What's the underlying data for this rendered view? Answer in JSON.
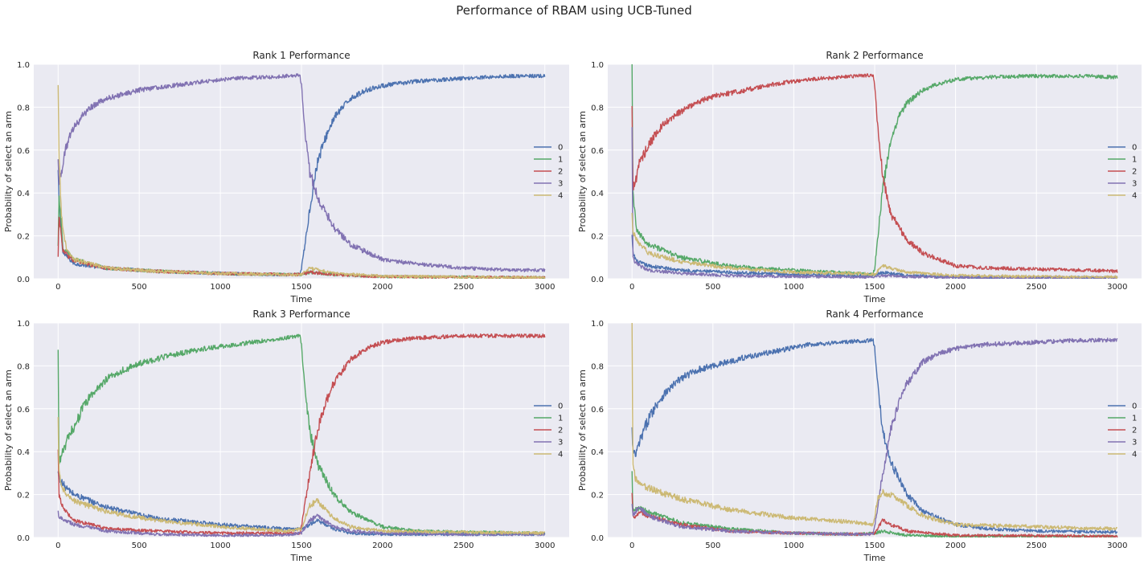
{
  "figure_title": "Performance of RBAM using UCB-Tuned",
  "colors": {
    "background": "#ffffff",
    "axes_face": "#eaeaf2",
    "grid": "#ffffff",
    "series": [
      "#4c72b0",
      "#55a868",
      "#c44e52",
      "#8172b2",
      "#ccb974"
    ]
  },
  "chart_data": [
    {
      "type": "line",
      "title": "Rank 1 Performance",
      "xlabel": "Time",
      "ylabel": "Probability of select an arm",
      "xlim": [
        -150,
        3150
      ],
      "ylim": [
        0,
        1.0
      ],
      "xticks": [
        0,
        500,
        1000,
        1500,
        2000,
        2500,
        3000
      ],
      "yticks": [
        0.0,
        0.2,
        0.4,
        0.6,
        0.8,
        1.0
      ],
      "legend": [
        "0",
        "1",
        "2",
        "3",
        "4"
      ],
      "legend_position": "center-right",
      "series": [
        {
          "name": "0",
          "x": [
            0,
            5,
            30,
            100,
            300,
            600,
            1000,
            1400,
            1490,
            1500,
            1520,
            1550,
            1600,
            1650,
            1700,
            1800,
            1900,
            2000,
            2200,
            2500,
            2800,
            3000
          ],
          "y": [
            0.5,
            0.35,
            0.12,
            0.07,
            0.05,
            0.035,
            0.025,
            0.018,
            0.02,
            0.05,
            0.15,
            0.32,
            0.55,
            0.66,
            0.75,
            0.84,
            0.88,
            0.9,
            0.92,
            0.935,
            0.945,
            0.945
          ]
        },
        {
          "name": "1",
          "x": [
            0,
            5,
            30,
            100,
            300,
            600,
            1000,
            1400,
            1500,
            1550,
            1700,
            2000,
            2500,
            3000
          ],
          "y": [
            0.15,
            0.4,
            0.14,
            0.09,
            0.05,
            0.035,
            0.025,
            0.02,
            0.02,
            0.03,
            0.02,
            0.01,
            0.008,
            0.005
          ]
        },
        {
          "name": "2",
          "x": [
            0,
            5,
            30,
            100,
            300,
            600,
            1000,
            1400,
            1500,
            1550,
            1700,
            2000,
            2500,
            3000
          ],
          "y": [
            0.1,
            0.3,
            0.13,
            0.08,
            0.05,
            0.035,
            0.025,
            0.02,
            0.02,
            0.03,
            0.02,
            0.01,
            0.008,
            0.005
          ]
        },
        {
          "name": "3",
          "x": [
            0,
            5,
            20,
            50,
            100,
            150,
            200,
            300,
            400,
            500,
            700,
            900,
            1100,
            1300,
            1490,
            1500,
            1520,
            1550,
            1600,
            1700,
            1800,
            2000,
            2200,
            2500,
            2800,
            3000
          ],
          "y": [
            0.55,
            0.45,
            0.5,
            0.62,
            0.71,
            0.76,
            0.8,
            0.84,
            0.86,
            0.88,
            0.9,
            0.92,
            0.935,
            0.94,
            0.95,
            0.9,
            0.7,
            0.5,
            0.38,
            0.24,
            0.16,
            0.09,
            0.07,
            0.05,
            0.04,
            0.04
          ]
        },
        {
          "name": "4",
          "x": [
            0,
            5,
            20,
            50,
            100,
            300,
            600,
            1000,
            1400,
            1500,
            1550,
            1700,
            2000,
            2500,
            3000
          ],
          "y": [
            0.9,
            0.6,
            0.3,
            0.14,
            0.09,
            0.05,
            0.035,
            0.025,
            0.02,
            0.02,
            0.05,
            0.025,
            0.012,
            0.008,
            0.005
          ]
        }
      ]
    },
    {
      "type": "line",
      "title": "Rank 2 Performance",
      "xlabel": "Time",
      "ylabel": "Probability of select an arm",
      "xlim": [
        -150,
        3150
      ],
      "ylim": [
        0,
        1.0
      ],
      "xticks": [
        0,
        500,
        1000,
        1500,
        2000,
        2500,
        3000
      ],
      "yticks": [
        0.0,
        0.2,
        0.4,
        0.6,
        0.8,
        1.0
      ],
      "legend": [
        "0",
        "1",
        "2",
        "3",
        "4"
      ],
      "legend_position": "center-right",
      "series": [
        {
          "name": "0",
          "x": [
            0,
            5,
            30,
            100,
            300,
            600,
            1000,
            1400,
            1500,
            1550,
            1700,
            2000,
            2500,
            3000
          ],
          "y": [
            0.2,
            0.12,
            0.08,
            0.06,
            0.04,
            0.03,
            0.02,
            0.015,
            0.02,
            0.03,
            0.015,
            0.008,
            0.006,
            0.005
          ]
        },
        {
          "name": "1",
          "x": [
            0,
            5,
            30,
            100,
            300,
            600,
            1000,
            1400,
            1490,
            1500,
            1520,
            1550,
            1600,
            1650,
            1700,
            1800,
            1900,
            2000,
            2200,
            2500,
            2800,
            3000
          ],
          "y": [
            1.0,
            0.4,
            0.22,
            0.16,
            0.1,
            0.06,
            0.04,
            0.025,
            0.02,
            0.05,
            0.2,
            0.42,
            0.65,
            0.76,
            0.82,
            0.88,
            0.91,
            0.93,
            0.94,
            0.945,
            0.945,
            0.94
          ]
        },
        {
          "name": "2",
          "x": [
            0,
            5,
            20,
            50,
            100,
            150,
            200,
            300,
            400,
            500,
            700,
            900,
            1100,
            1300,
            1490,
            1500,
            1520,
            1550,
            1600,
            1700,
            1800,
            2000,
            2200,
            2500,
            2800,
            3000
          ],
          "y": [
            0.8,
            0.42,
            0.45,
            0.55,
            0.62,
            0.68,
            0.72,
            0.78,
            0.82,
            0.85,
            0.88,
            0.91,
            0.93,
            0.94,
            0.95,
            0.9,
            0.7,
            0.48,
            0.3,
            0.18,
            0.12,
            0.06,
            0.05,
            0.045,
            0.04,
            0.035
          ]
        },
        {
          "name": "3",
          "x": [
            0,
            5,
            20,
            50,
            100,
            300,
            600,
            1000,
            1400,
            1500,
            1550,
            1700,
            2000,
            2500,
            3000
          ],
          "y": [
            0.7,
            0.1,
            0.08,
            0.06,
            0.04,
            0.025,
            0.015,
            0.01,
            0.008,
            0.01,
            0.015,
            0.01,
            0.006,
            0.005,
            0.005
          ]
        },
        {
          "name": "4",
          "x": [
            0,
            5,
            20,
            50,
            100,
            300,
            600,
            1000,
            1400,
            1500,
            1550,
            1700,
            2000,
            2500,
            3000
          ],
          "y": [
            0.3,
            0.22,
            0.2,
            0.16,
            0.12,
            0.08,
            0.05,
            0.03,
            0.025,
            0.02,
            0.06,
            0.03,
            0.015,
            0.01,
            0.008
          ]
        }
      ]
    },
    {
      "type": "line",
      "title": "Rank 3 Performance",
      "xlabel": "Time",
      "ylabel": "Probability of select an arm",
      "xlim": [
        -150,
        3150
      ],
      "ylim": [
        0,
        1.0
      ],
      "xticks": [
        0,
        500,
        1000,
        1500,
        2000,
        2500,
        3000
      ],
      "yticks": [
        0.0,
        0.2,
        0.4,
        0.6,
        0.8,
        1.0
      ],
      "legend": [
        "0",
        "1",
        "2",
        "3",
        "4"
      ],
      "legend_position": "center-right",
      "series": [
        {
          "name": "0",
          "x": [
            0,
            5,
            20,
            50,
            100,
            300,
            600,
            1000,
            1400,
            1500,
            1550,
            1600,
            1700,
            1800,
            2000,
            2500,
            3000
          ],
          "y": [
            0.3,
            0.28,
            0.26,
            0.23,
            0.2,
            0.14,
            0.09,
            0.06,
            0.04,
            0.04,
            0.06,
            0.08,
            0.04,
            0.02,
            0.015,
            0.015,
            0.015
          ]
        },
        {
          "name": "1",
          "x": [
            0,
            5,
            20,
            50,
            100,
            150,
            200,
            300,
            400,
            500,
            700,
            900,
            1100,
            1300,
            1490,
            1500,
            1520,
            1550,
            1600,
            1700,
            1800,
            2000,
            2200,
            2500,
            3000
          ],
          "y": [
            0.87,
            0.35,
            0.38,
            0.44,
            0.52,
            0.6,
            0.66,
            0.74,
            0.78,
            0.81,
            0.85,
            0.88,
            0.9,
            0.92,
            0.94,
            0.9,
            0.7,
            0.5,
            0.34,
            0.2,
            0.12,
            0.05,
            0.03,
            0.025,
            0.02
          ]
        },
        {
          "name": "2",
          "x": [
            0,
            5,
            20,
            50,
            100,
            300,
            600,
            1000,
            1400,
            1490,
            1500,
            1520,
            1550,
            1600,
            1650,
            1700,
            1800,
            1900,
            2000,
            2200,
            2500,
            2800,
            3000
          ],
          "y": [
            0.4,
            0.2,
            0.16,
            0.12,
            0.08,
            0.04,
            0.03,
            0.02,
            0.02,
            0.02,
            0.05,
            0.15,
            0.3,
            0.5,
            0.63,
            0.72,
            0.83,
            0.88,
            0.91,
            0.93,
            0.94,
            0.94,
            0.94
          ]
        },
        {
          "name": "3",
          "x": [
            0,
            5,
            20,
            50,
            100,
            300,
            600,
            1000,
            1400,
            1500,
            1550,
            1600,
            1700,
            1800,
            2000,
            2500,
            3000
          ],
          "y": [
            0.12,
            0.1,
            0.09,
            0.08,
            0.06,
            0.03,
            0.015,
            0.01,
            0.01,
            0.02,
            0.08,
            0.1,
            0.05,
            0.03,
            0.02,
            0.015,
            0.015
          ]
        },
        {
          "name": "4",
          "x": [
            0,
            5,
            20,
            50,
            100,
            300,
            600,
            1000,
            1400,
            1500,
            1550,
            1600,
            1700,
            1800,
            2000,
            2500,
            3000
          ],
          "y": [
            0.55,
            0.3,
            0.25,
            0.2,
            0.17,
            0.12,
            0.08,
            0.05,
            0.03,
            0.04,
            0.15,
            0.17,
            0.09,
            0.05,
            0.03,
            0.025,
            0.02
          ]
        }
      ]
    },
    {
      "type": "line",
      "title": "Rank 4 Performance",
      "xlabel": "Time",
      "ylabel": "Probability of select an arm",
      "xlim": [
        -150,
        3150
      ],
      "ylim": [
        0,
        1.0
      ],
      "xticks": [
        0,
        500,
        1000,
        1500,
        2000,
        2500,
        3000
      ],
      "yticks": [
        0.0,
        0.2,
        0.4,
        0.6,
        0.8,
        1.0
      ],
      "legend": [
        "0",
        "1",
        "2",
        "3",
        "4"
      ],
      "legend_position": "center-right",
      "series": [
        {
          "name": "0",
          "x": [
            0,
            5,
            20,
            50,
            100,
            150,
            200,
            300,
            400,
            500,
            700,
            900,
            1100,
            1300,
            1490,
            1500,
            1520,
            1550,
            1600,
            1700,
            1800,
            2000,
            2200,
            2500,
            3000
          ],
          "y": [
            0.5,
            0.4,
            0.38,
            0.45,
            0.55,
            0.62,
            0.67,
            0.74,
            0.78,
            0.8,
            0.84,
            0.87,
            0.9,
            0.91,
            0.92,
            0.88,
            0.7,
            0.5,
            0.35,
            0.2,
            0.12,
            0.06,
            0.04,
            0.03,
            0.025
          ]
        },
        {
          "name": "1",
          "x": [
            0,
            5,
            20,
            50,
            100,
            300,
            600,
            1000,
            1400,
            1500,
            1550,
            1700,
            2000,
            2500,
            3000
          ],
          "y": [
            0.3,
            0.12,
            0.13,
            0.14,
            0.12,
            0.07,
            0.04,
            0.02,
            0.015,
            0.02,
            0.03,
            0.01,
            0.005,
            0.005,
            0.005
          ]
        },
        {
          "name": "2",
          "x": [
            0,
            5,
            20,
            50,
            100,
            300,
            600,
            1000,
            1400,
            1500,
            1550,
            1600,
            1700,
            2000,
            2500,
            3000
          ],
          "y": [
            0.2,
            0.1,
            0.1,
            0.12,
            0.1,
            0.06,
            0.03,
            0.02,
            0.015,
            0.02,
            0.08,
            0.06,
            0.03,
            0.01,
            0.008,
            0.005
          ]
        },
        {
          "name": "3",
          "x": [
            0,
            5,
            20,
            50,
            100,
            300,
            600,
            1000,
            1400,
            1490,
            1500,
            1520,
            1550,
            1600,
            1650,
            1700,
            1800,
            1900,
            2000,
            2200,
            2500,
            2800,
            3000
          ],
          "y": [
            0.15,
            0.1,
            0.12,
            0.14,
            0.1,
            0.05,
            0.03,
            0.02,
            0.015,
            0.015,
            0.05,
            0.15,
            0.3,
            0.5,
            0.63,
            0.72,
            0.82,
            0.86,
            0.88,
            0.9,
            0.91,
            0.92,
            0.92
          ]
        },
        {
          "name": "4",
          "x": [
            0,
            5,
            20,
            50,
            100,
            300,
            600,
            1000,
            1400,
            1490,
            1500,
            1520,
            1550,
            1600,
            1700,
            1800,
            2000,
            2500,
            3000
          ],
          "y": [
            1.0,
            0.35,
            0.28,
            0.25,
            0.23,
            0.18,
            0.13,
            0.09,
            0.07,
            0.06,
            0.1,
            0.18,
            0.21,
            0.2,
            0.15,
            0.1,
            0.06,
            0.05,
            0.04
          ]
        }
      ]
    }
  ]
}
